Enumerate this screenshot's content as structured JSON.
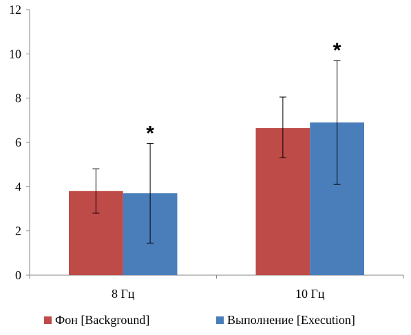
{
  "chart_data": {
    "type": "bar",
    "categories": [
      "8 Гц",
      "10 Гц"
    ],
    "series": [
      {
        "name": "Фон [Background]",
        "values": [
          3.8,
          6.65
        ],
        "error_low": [
          2.8,
          5.3
        ],
        "error_high": [
          4.8,
          8.05
        ],
        "color": "#be4b48"
      },
      {
        "name": "Выполнение [Execution]",
        "values": [
          3.7,
          6.9
        ],
        "error_low": [
          1.45,
          4.1
        ],
        "error_high": [
          5.95,
          9.7
        ],
        "color": "#4a7ebb"
      }
    ],
    "significance": [
      "*",
      "*"
    ],
    "ylim": [
      0,
      12
    ],
    "yticks": [
      "0",
      "2",
      "4",
      "6",
      "8",
      "10",
      "12"
    ],
    "title": "",
    "xlabel": "",
    "ylabel": "",
    "grid": false,
    "legend_position": "bottom"
  }
}
